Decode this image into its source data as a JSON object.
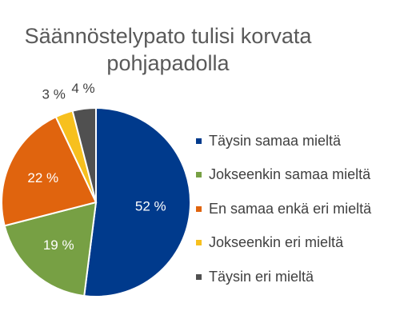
{
  "chart_data": {
    "type": "pie",
    "title_lines": [
      "Säännöstelypato tulisi korvata",
      "pohjapadolla"
    ],
    "categories": [
      "Täysin samaa mieltä",
      "Jokseenkin samaa mieltä",
      "En samaa enkä eri mieltä",
      "Jokseenkin eri mieltä",
      "Täysin eri mieltä"
    ],
    "values": [
      52,
      19,
      22,
      3,
      4
    ],
    "data_labels": [
      "52 %",
      "19 %",
      "22 %",
      "3 %",
      "4 %"
    ],
    "colors": [
      "#003A8C",
      "#77A044",
      "#E0640E",
      "#F7C01E",
      "#505050"
    ],
    "legend_position": "right"
  }
}
